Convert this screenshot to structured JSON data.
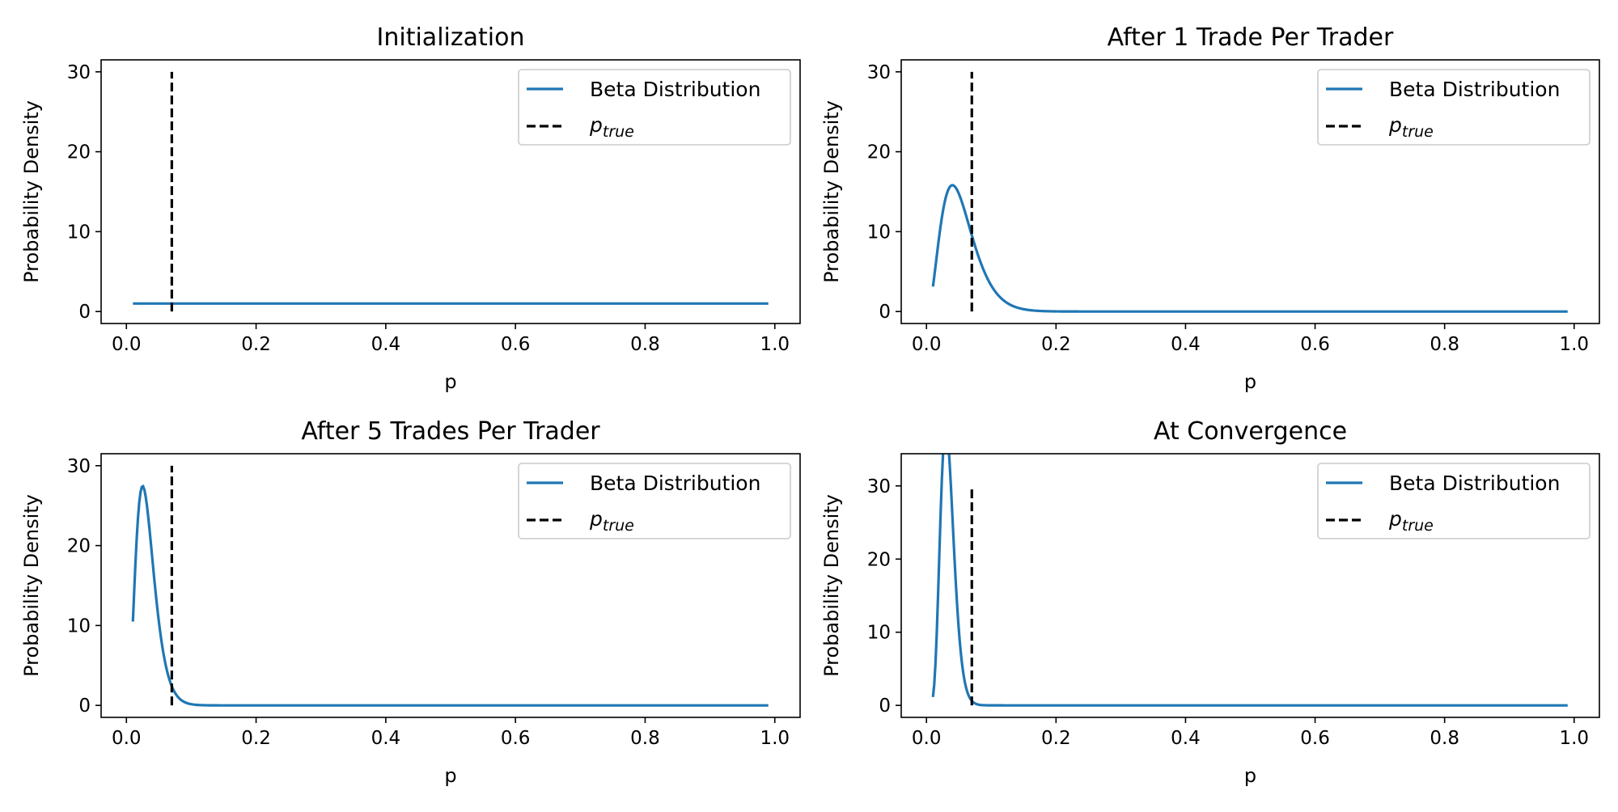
{
  "figure": {
    "shared_ylabel": "Probability Density",
    "shared_xlabel": "p",
    "legend_labels": {
      "beta": "Beta Distribution",
      "ptrue_main": "p",
      "ptrue_sub": "true"
    }
  },
  "chart_data": [
    {
      "type": "line",
      "title": "Initialization",
      "xlabel": "p",
      "ylabel": "Probability Density",
      "xlim": [
        -0.039,
        1.039
      ],
      "ylim": [
        -1.5,
        31.5
      ],
      "xticks": [
        "0.0",
        "0.2",
        "0.4",
        "0.6",
        "0.8",
        "1.0"
      ],
      "yticks": [
        "0",
        "10",
        "20",
        "30"
      ],
      "legend": "top-right",
      "grid": false,
      "series": [
        {
          "name": "Beta Distribution",
          "color": "#1f77b4",
          "style": "solid",
          "distribution": {
            "alpha": 1,
            "beta": 1
          },
          "x_range": [
            0.01,
            0.99
          ]
        },
        {
          "name": "p_true",
          "color": "#000000",
          "style": "dashed",
          "x": 0.07,
          "y_range": [
            0,
            30
          ]
        }
      ]
    },
    {
      "type": "line",
      "title": "After 1 Trade Per Trader",
      "xlabel": "p",
      "ylabel": "Probability Density",
      "xlim": [
        -0.039,
        1.039
      ],
      "ylim": [
        -1.5,
        31.5
      ],
      "xticks": [
        "0.0",
        "0.2",
        "0.4",
        "0.6",
        "0.8",
        "1.0"
      ],
      "yticks": [
        "0",
        "10",
        "20",
        "30"
      ],
      "legend": "top-right",
      "grid": false,
      "series": [
        {
          "name": "Beta Distribution",
          "color": "#1f77b4",
          "style": "solid",
          "distribution": {
            "alpha": 3.5,
            "beta": 61
          },
          "x_range": [
            0.01,
            0.99
          ]
        },
        {
          "name": "p_true",
          "color": "#000000",
          "style": "dashed",
          "x": 0.07,
          "y_range": [
            0,
            30
          ]
        }
      ]
    },
    {
      "type": "line",
      "title": "After 5 Trades Per Trader",
      "xlabel": "p",
      "ylabel": "Probability Density",
      "xlim": [
        -0.039,
        1.039
      ],
      "ylim": [
        -1.5,
        31.5
      ],
      "xticks": [
        "0.0",
        "0.2",
        "0.4",
        "0.6",
        "0.8",
        "1.0"
      ],
      "yticks": [
        "0",
        "10",
        "20",
        "30"
      ],
      "legend": "top-right",
      "grid": false,
      "series": [
        {
          "name": "Beta Distribution",
          "color": "#1f77b4",
          "style": "solid",
          "distribution": {
            "alpha": 4,
            "beta": 118
          },
          "x_range": [
            0.01,
            0.99
          ]
        },
        {
          "name": "p_true",
          "color": "#000000",
          "style": "dashed",
          "x": 0.07,
          "y_range": [
            0,
            30
          ]
        }
      ]
    },
    {
      "type": "line",
      "title": "At Convergence",
      "xlabel": "p",
      "ylabel": "Probability Density",
      "xlim": [
        -0.039,
        1.039
      ],
      "ylim": [
        -1.64,
        34.4
      ],
      "xticks": [
        "0.0",
        "0.2",
        "0.4",
        "0.6",
        "0.8",
        "1.0"
      ],
      "yticks": [
        "0",
        "10",
        "20",
        "30"
      ],
      "legend": "top-right",
      "grid": false,
      "series": [
        {
          "name": "Beta Distribution",
          "color": "#1f77b4",
          "style": "solid",
          "distribution": {
            "alpha": 9,
            "beta": 260
          },
          "x_range": [
            0.01,
            0.99
          ]
        },
        {
          "name": "p_true",
          "color": "#000000",
          "style": "dashed",
          "x": 0.07,
          "y_range": [
            0,
            30
          ]
        }
      ]
    }
  ]
}
